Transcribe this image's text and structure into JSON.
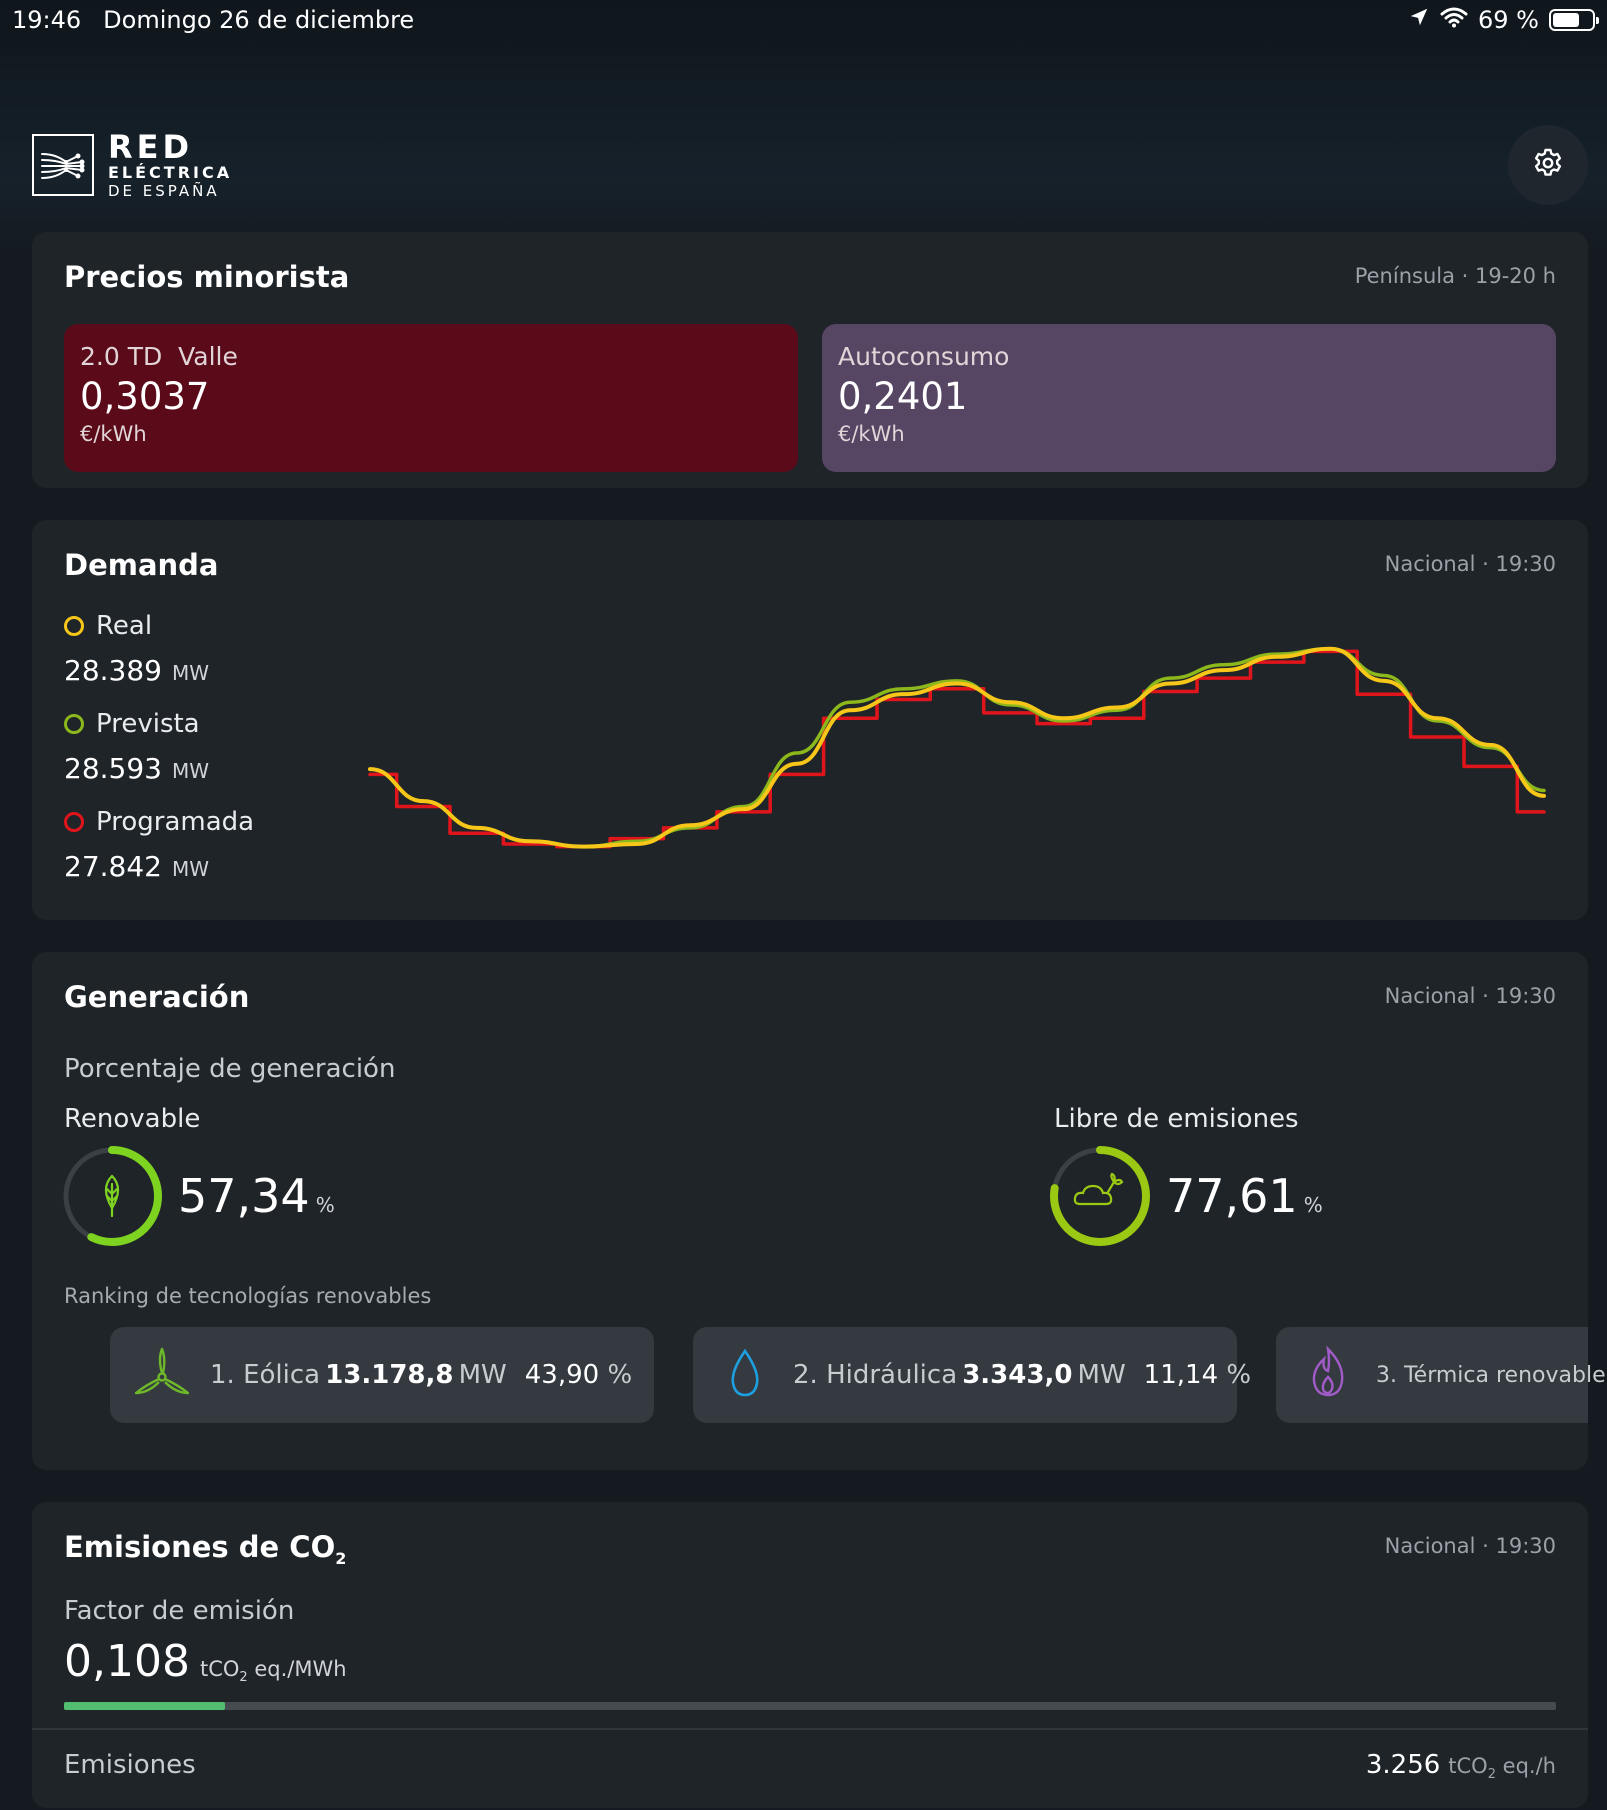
{
  "status_bar": {
    "time": "19:46",
    "date": "Domingo 26 de diciembre",
    "battery": "69 %",
    "battery_level": 0.69
  },
  "logo": {
    "line1": "RED",
    "line2": "ELÉCTRICA",
    "line3": "DE ESPAÑA"
  },
  "precios": {
    "title": "Precios minorista",
    "meta": "Península · 19-20 h",
    "tarifa": {
      "label": "2.0 TD  Valle",
      "value": "0,3037",
      "unit": "€/kWh",
      "color": "#5a0a19"
    },
    "autoconsumo": {
      "label": "Autoconsumo",
      "value": "0,2401",
      "unit": "€/kWh",
      "color": "#564563"
    }
  },
  "demanda": {
    "title": "Demanda",
    "meta": "Nacional · 19:30",
    "real": {
      "label": "Real",
      "value": "28.389",
      "unit": "MW",
      "color": "#f6c719"
    },
    "prevista": {
      "label": "Prevista",
      "value": "28.593",
      "unit": "MW",
      "color": "#8cb81c"
    },
    "programada": {
      "label": "Programada",
      "value": "27.842",
      "unit": "MW",
      "color": "#e0141b"
    }
  },
  "chart_data": {
    "type": "line",
    "series": [
      {
        "name": "Real",
        "color": "#f6c719",
        "values": [
          29.4,
          28.2,
          27.2,
          26.7,
          26.5,
          26.6,
          27.3,
          27.9,
          29.6,
          31.6,
          32.2,
          32.6,
          31.9,
          31.3,
          31.7,
          32.6,
          33.1,
          33.6,
          33.9,
          32.7,
          31.3,
          30.3,
          28.4
        ]
      },
      {
        "name": "Prevista",
        "color": "#8cb81c",
        "values": [
          29.4,
          28.2,
          27.2,
          26.7,
          26.5,
          26.7,
          27.2,
          28.0,
          30.0,
          31.9,
          32.4,
          32.7,
          31.8,
          31.2,
          31.6,
          32.8,
          33.3,
          33.7,
          33.9,
          32.9,
          31.2,
          30.2,
          28.6
        ]
      },
      {
        "name": "Programada",
        "color": "#e0141b",
        "values": [
          29.2,
          28.0,
          27.0,
          26.6,
          26.5,
          26.8,
          27.2,
          27.8,
          29.2,
          31.3,
          32.0,
          32.4,
          31.5,
          31.1,
          31.3,
          32.3,
          32.8,
          33.4,
          33.8,
          32.2,
          30.6,
          29.5,
          27.8
        ]
      }
    ],
    "ylim": [
      26.0,
      34.6
    ]
  },
  "generacion": {
    "title": "Generación",
    "meta": "Nacional · 19:30",
    "subtitle": "Porcentaje de generación",
    "renovable": {
      "label": "Renovable",
      "value": "57,34",
      "unit": "%",
      "fraction": 0.5734,
      "color": "#7ed321"
    },
    "libre": {
      "label": "Libre de emisiones",
      "value": "77,61",
      "unit": "%",
      "fraction": 0.7761,
      "color": "#9ac813"
    },
    "ranking_title": "Ranking de tecnologías renovables",
    "ranking": [
      {
        "name": "1. Eólica",
        "mw": "13.178,8",
        "unit": "MW",
        "pct": "43,90",
        "pct_unit": "%",
        "icon": "wind-turbine-icon",
        "color": "#6eb82a"
      },
      {
        "name": "2. Hidráulica",
        "mw": "3.343,0",
        "unit": "MW",
        "pct": "11,14",
        "pct_unit": "%",
        "icon": "water-drop-icon",
        "color": "#1e9fe0"
      },
      {
        "name": "3. Térmica renovable",
        "icon": "flame-icon",
        "color": "#a25bc9"
      }
    ]
  },
  "emisiones": {
    "title": "Emisiones de CO",
    "title_sub": "2",
    "meta": "Nacional · 19:30",
    "factor_label": "Factor de emisión",
    "factor_value": "0,108",
    "factor_unit_a": "tCO",
    "factor_unit_sub": "2",
    "factor_unit_b": " eq./MWh",
    "factor_fraction": 0.108,
    "emisiones_label": "Emisiones",
    "emisiones_value": "3.256",
    "emisiones_unit_a": "tCO",
    "emisiones_unit_sub": "2",
    "emisiones_unit_b": " eq./h"
  }
}
